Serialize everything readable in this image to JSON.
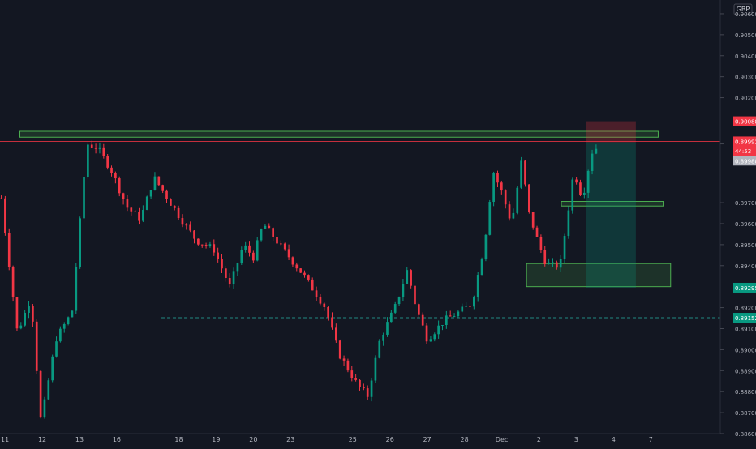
{
  "currency_label": "GBP",
  "chart_data": {
    "type": "candlestick",
    "title": "",
    "ylim": [
      0.886,
      0.9065
    ],
    "yticks": [
      "0.90600",
      "0.90500",
      "0.90400",
      "0.90300",
      "0.90200",
      "0.89980",
      "0.89700",
      "0.89600",
      "0.89500",
      "0.89400",
      "0.89200",
      "0.89100",
      "0.89000",
      "0.88900",
      "0.88800",
      "0.88700",
      "0.88600"
    ],
    "xticks": [
      {
        "label": "11",
        "pos": 0.4
      },
      {
        "label": "12",
        "pos": 3.4
      },
      {
        "label": "13",
        "pos": 6.4
      },
      {
        "label": "16",
        "pos": 9.4
      },
      {
        "label": "18",
        "pos": 14.4
      },
      {
        "label": "19",
        "pos": 17.4
      },
      {
        "label": "20",
        "pos": 20.4
      },
      {
        "label": "23",
        "pos": 23.4
      },
      {
        "label": "25",
        "pos": 28.4
      },
      {
        "label": "26",
        "pos": 31.4
      },
      {
        "label": "27",
        "pos": 34.4
      },
      {
        "label": "28",
        "pos": 37.4
      },
      {
        "label": "Dec",
        "pos": 40.4
      },
      {
        "label": "2",
        "pos": 43.4
      },
      {
        "label": "3",
        "pos": 46.4
      },
      {
        "label": "4",
        "pos": 49.4
      },
      {
        "label": "7",
        "pos": 52.4
      }
    ],
    "x_range": [
      0,
      58
    ],
    "price_badges": [
      {
        "label": "0.90088",
        "value": 0.90088,
        "color": "#f23645"
      },
      {
        "label": "0.89992",
        "value": 0.89992,
        "color": "#f23645"
      },
      {
        "label": "44:53",
        "value": 0.89947,
        "color": "#f23645"
      },
      {
        "label": "0.89988",
        "value": 0.899,
        "color": "#b2b5be"
      },
      {
        "label": "0.89295",
        "value": 0.89295,
        "color": "#089981"
      },
      {
        "label": "0.89152",
        "value": 0.89152,
        "color": "#089981"
      }
    ],
    "horizontal_lines": [
      {
        "value": 0.89992,
        "color": "#f23645",
        "style": "solid",
        "from": 0
      },
      {
        "value": 0.89152,
        "color": "#26a69a",
        "style": "dashed",
        "from": 13.0
      }
    ],
    "zones": [
      {
        "x0": 1.6,
        "x1": 53.0,
        "y0": 0.90012,
        "y1": 0.9004,
        "color": "#4caf50"
      },
      {
        "x0": 45.2,
        "x1": 53.4,
        "y0": 0.89684,
        "y1": 0.89706,
        "color": "#4caf50"
      },
      {
        "x0": 42.4,
        "x1": 54.0,
        "y0": 0.893,
        "y1": 0.8941,
        "color": "#4caf50"
      }
    ],
    "position": {
      "x0": 47.2,
      "x1": 51.2,
      "entry": 0.89988,
      "stop": 0.90088,
      "target": 0.89295
    },
    "candle_colors": {
      "up": "#089981",
      "down": "#f23645"
    },
    "anchors": [
      [
        0,
        0.8977
      ],
      [
        1.4,
        0.8908
      ],
      [
        2.5,
        0.8925
      ],
      [
        3.3,
        0.8865
      ],
      [
        4.5,
        0.8905
      ],
      [
        5.8,
        0.8918
      ],
      [
        7.0,
        0.8998
      ],
      [
        7.9,
        0.8996
      ],
      [
        9.0,
        0.8985
      ],
      [
        10.2,
        0.8968
      ],
      [
        11.3,
        0.8962
      ],
      [
        12.4,
        0.8982
      ],
      [
        13.5,
        0.8972
      ],
      [
        14.6,
        0.8962
      ],
      [
        15.8,
        0.8952
      ],
      [
        17.2,
        0.8948
      ],
      [
        18.5,
        0.893
      ],
      [
        19.6,
        0.895
      ],
      [
        20.4,
        0.8944
      ],
      [
        21.2,
        0.896
      ],
      [
        22.5,
        0.895
      ],
      [
        24.5,
        0.8935
      ],
      [
        26.2,
        0.892
      ],
      [
        27.3,
        0.8898
      ],
      [
        28.8,
        0.8883
      ],
      [
        29.6,
        0.8878
      ],
      [
        30.6,
        0.8905
      ],
      [
        31.8,
        0.892
      ],
      [
        32.8,
        0.8938
      ],
      [
        33.5,
        0.892
      ],
      [
        34.4,
        0.8905
      ],
      [
        35.8,
        0.8914
      ],
      [
        37.0,
        0.8918
      ],
      [
        38.0,
        0.8922
      ],
      [
        39.0,
        0.895
      ],
      [
        39.7,
        0.8985
      ],
      [
        40.4,
        0.8975
      ],
      [
        41.2,
        0.896
      ],
      [
        42.0,
        0.899
      ],
      [
        42.6,
        0.8965
      ],
      [
        43.4,
        0.895
      ],
      [
        43.9,
        0.8942
      ],
      [
        44.4,
        0.894
      ],
      [
        45.1,
        0.894
      ],
      [
        45.6,
        0.896
      ],
      [
        46.2,
        0.8985
      ],
      [
        46.9,
        0.8972
      ],
      [
        47.5,
        0.899
      ],
      [
        47.8,
        0.8997
      ],
      [
        48.0,
        0.8996
      ]
    ],
    "candle_count": 152
  }
}
